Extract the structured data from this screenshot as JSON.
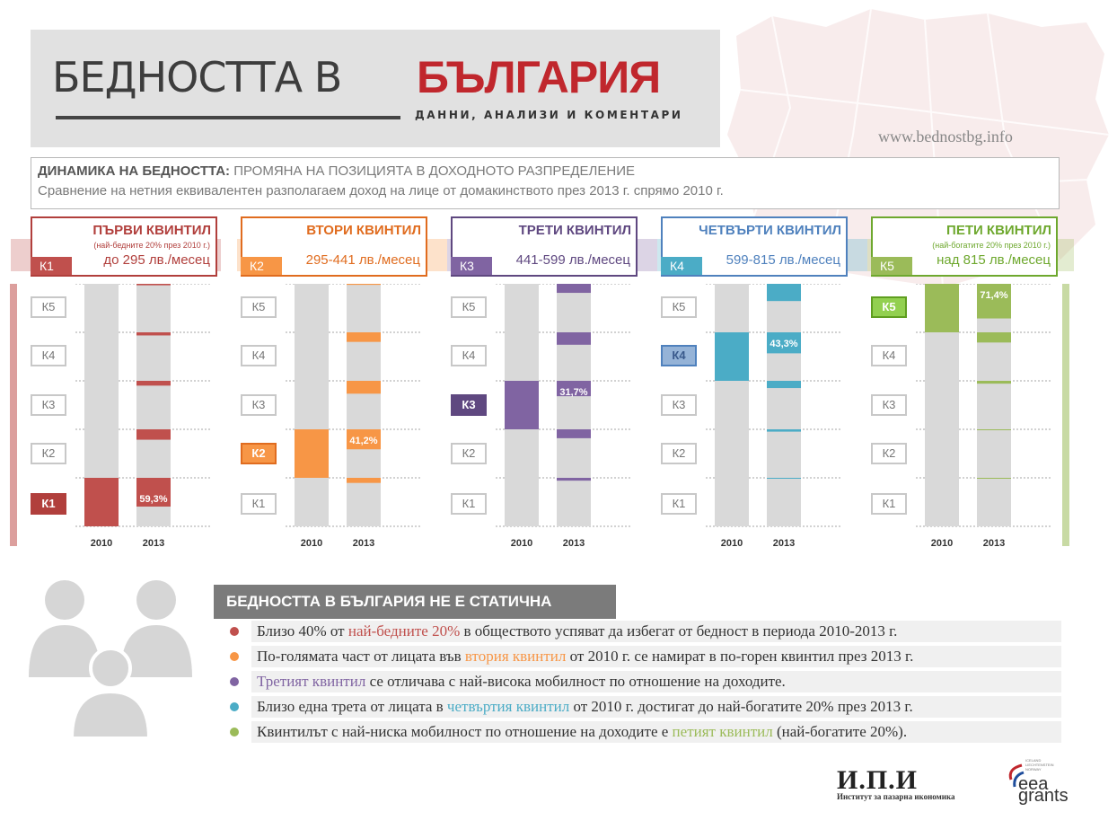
{
  "header": {
    "title_part1": "БЕДНОСТТА В",
    "title_part2": "БЪЛГАРИЯ",
    "subtitle": "ДАННИ, АНАЛИЗИ И КОМЕНТАРИ",
    "website": "www.bednostbg.info"
  },
  "info": {
    "title_bold": "ДИНАМИКА НА БЕДНОСТТА:",
    "title_rest": " ПРОМЯНА НА ПОЗИЦИЯТА В ДОХОДНОТО РАЗПРЕДЕЛЕНИЕ",
    "description": "Сравнение на нетния  еквивалентен разполагаем доход на лице от домакинството през 2013 г. спрямо 2010 г."
  },
  "chart_data": [
    {
      "type": "bar",
      "title": "ПЪРВИ КВИНТИЛ",
      "note": "(най-бедните 20% през 2010 г.)",
      "range": "до 295 лв./месец",
      "badge": "К1",
      "source_index": 0,
      "categories": [
        "2010",
        "2013"
      ],
      "series": [
        {
          "name": "К1",
          "values": [
            100,
            59.3
          ]
        },
        {
          "name": "К2",
          "values": [
            0,
            21.4
          ]
        },
        {
          "name": "К3",
          "values": [
            0,
            9.9
          ]
        },
        {
          "name": "К4",
          "values": [
            0,
            6.4
          ]
        },
        {
          "name": "К5",
          "values": [
            0,
            3.0
          ]
        }
      ],
      "highlight_label": "59,3%",
      "color": "#c0504d"
    },
    {
      "type": "bar",
      "title": "ВТОРИ КВИНТИЛ",
      "note": "",
      "range": "295-441 лв./месец",
      "badge": "К2",
      "source_index": 1,
      "categories": [
        "2010",
        "2013"
      ],
      "series": [
        {
          "name": "К1",
          "values": [
            0,
            10.5
          ]
        },
        {
          "name": "К2",
          "values": [
            100,
            41.2
          ]
        },
        {
          "name": "К3",
          "values": [
            0,
            26.5
          ]
        },
        {
          "name": "К4",
          "values": [
            0,
            19.7
          ]
        },
        {
          "name": "К5",
          "values": [
            0,
            2.1
          ]
        }
      ],
      "highlight_label": "41,2%",
      "color": "#f79646"
    },
    {
      "type": "bar",
      "title": "ТРЕТИ КВИНТИЛ",
      "note": "",
      "range": "441-599 лв./месец",
      "badge": "К3",
      "source_index": 2,
      "categories": [
        "2010",
        "2013"
      ],
      "series": [
        {
          "name": "К1",
          "values": [
            0,
            5.8
          ]
        },
        {
          "name": "К2",
          "values": [
            0,
            18.3
          ]
        },
        {
          "name": "К3",
          "values": [
            100,
            31.7
          ]
        },
        {
          "name": "К4",
          "values": [
            0,
            25.6
          ]
        },
        {
          "name": "К5",
          "values": [
            0,
            18.6
          ]
        }
      ],
      "highlight_label": "31,7%",
      "color": "#8064a2"
    },
    {
      "type": "bar",
      "title": "ЧЕТВЪРТИ КВИНТИЛ",
      "note": "",
      "range": "599-815 лв./месец",
      "badge": "К4",
      "source_index": 3,
      "categories": [
        "2010",
        "2013"
      ],
      "series": [
        {
          "name": "К1",
          "values": [
            0,
            1.5
          ]
        },
        {
          "name": "К2",
          "values": [
            0,
            4.8
          ]
        },
        {
          "name": "К3",
          "values": [
            0,
            14.9
          ]
        },
        {
          "name": "К4",
          "values": [
            100,
            43.3
          ]
        },
        {
          "name": "К5",
          "values": [
            0,
            35.5
          ]
        }
      ],
      "highlight_label": "43,3%",
      "color": "#95b3d7"
    },
    {
      "type": "bar",
      "title": "ПЕТИ КВИНТИЛ",
      "note": "(най-богатите 20% през 2010 г.)",
      "range": "над 815 лв./месец",
      "badge": "К5",
      "source_index": 4,
      "categories": [
        "2010",
        "2013"
      ],
      "series": [
        {
          "name": "К1",
          "values": [
            0,
            0.6
          ]
        },
        {
          "name": "К2",
          "values": [
            0,
            1.2
          ]
        },
        {
          "name": "К3",
          "values": [
            0,
            5.8
          ]
        },
        {
          "name": "К4",
          "values": [
            0,
            21.0
          ]
        },
        {
          "name": "К5",
          "values": [
            100,
            71.4
          ]
        }
      ],
      "highlight_label": "71,4%",
      "color": "#92d050"
    }
  ],
  "quintile_labels": [
    "К5",
    "К4",
    "К3",
    "К2",
    "К1"
  ],
  "section": {
    "title": "БЕДНОСТТА В БЪЛГАРИЯ НЕ Е СТАТИЧНА",
    "bullets": [
      {
        "before": "Близо 40% от ",
        "highlight": "най-бедните 20%",
        "after": " в обществото успяват да избегат от бедност в периода 2010-2013 г.",
        "color": "#c0504d"
      },
      {
        "before": "По-голямата част от лицата във ",
        "highlight": "втория квинтил",
        "after": " от 2010 г. се намират в по-горен квинтил през 2013 г.",
        "color": "#f79646"
      },
      {
        "before": "",
        "highlight": "Третият квинтил",
        "after": " се отличава с най-висока мобилност по отношение на доходите.",
        "color": "#8064a2"
      },
      {
        "before": "Близо една трета от лицата в ",
        "highlight": "четвъртия квинтил",
        "after": " от 2010 г. достигат до най-богатите 20% през 2013 г.",
        "color": "#4bacc6"
      },
      {
        "before": "Квинтилът с най-ниска мобилност по отношение на доходите е ",
        "highlight": "петият квинтил",
        "after": " (най-богатите 20%).",
        "color": "#9bbb59"
      }
    ]
  },
  "logos": {
    "ipi_abbr": "И.П.И",
    "ipi_name": "Институт за пазарна икономика",
    "eea_line1": "eea",
    "eea_line2": "grants",
    "eea_small": "ICELAND LIECHTENSTEIN NORWAY"
  },
  "colors": {
    "bar_bg": "#d9d9d9",
    "grid": "#a6a6a6",
    "dark": [
      "#b13f3c",
      "#e06c1f",
      "#5f4880",
      "#4f81bd",
      "#6ea82e"
    ],
    "accent": [
      "#c0504d",
      "#f79646",
      "#8064a2",
      "#4bacc6",
      "#9bbb59"
    ]
  }
}
